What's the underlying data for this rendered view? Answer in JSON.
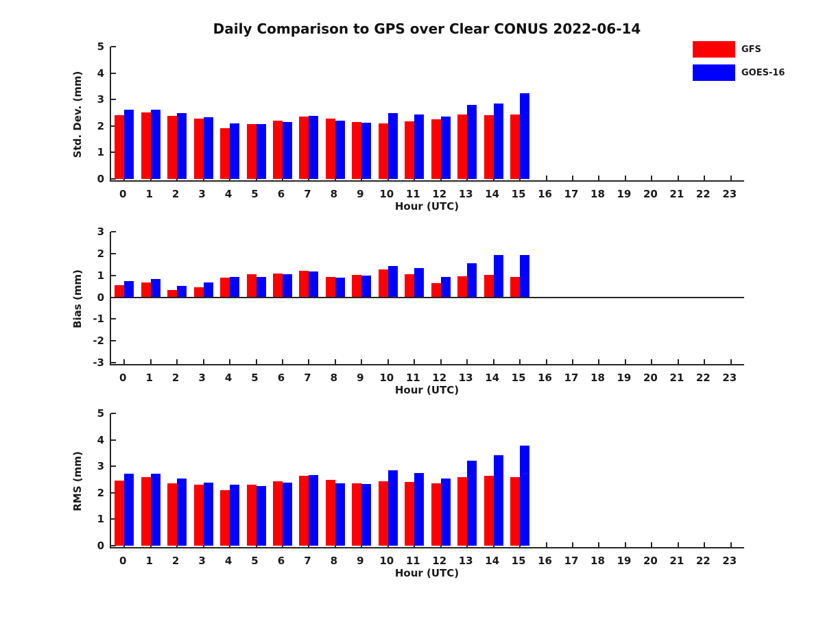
{
  "title": "Daily Comparison to GPS over Clear CONUS 2022-06-14",
  "legend": {
    "position": "outside-top-right",
    "items": [
      {
        "label": "GFS",
        "color": "#ff0000"
      },
      {
        "label": "GOES-16",
        "color": "#0000ff"
      }
    ]
  },
  "axis_color": "#262626",
  "chart_data": [
    {
      "type": "bar",
      "title": "",
      "ylabel": "Std. Dev. (mm)",
      "xlabel": "Hour (UTC)",
      "ylim": [
        0,
        5
      ],
      "yticks": [
        0,
        1,
        2,
        3,
        4,
        5
      ],
      "grid": false,
      "categories": [
        "0",
        "1",
        "2",
        "3",
        "4",
        "5",
        "6",
        "7",
        "8",
        "9",
        "10",
        "11",
        "12",
        "13",
        "14",
        "15",
        "16",
        "17",
        "18",
        "19",
        "20",
        "21",
        "22",
        "23"
      ],
      "series": [
        {
          "name": "GFS",
          "color": "#ff0000",
          "values": [
            2.42,
            2.52,
            2.38,
            2.27,
            1.91,
            2.06,
            2.19,
            2.37,
            2.29,
            2.16,
            2.09,
            2.17,
            2.26,
            2.43,
            2.41,
            2.43,
            null,
            null,
            null,
            null,
            null,
            null,
            null,
            null
          ]
        },
        {
          "name": "GOES-16",
          "color": "#0000ff",
          "values": [
            2.62,
            2.62,
            2.49,
            2.32,
            2.11,
            2.06,
            2.15,
            2.39,
            2.19,
            2.12,
            2.49,
            2.44,
            2.37,
            2.81,
            2.86,
            3.24,
            null,
            null,
            null,
            null,
            null,
            null,
            null,
            null
          ]
        }
      ]
    },
    {
      "type": "bar",
      "title": "",
      "ylabel": "Bias (mm)",
      "xlabel": "Hour (UTC)",
      "ylim": [
        -3,
        3
      ],
      "yticks": [
        -3,
        -2,
        -1,
        0,
        1,
        2,
        3
      ],
      "zero_line": true,
      "grid": false,
      "categories": [
        "0",
        "1",
        "2",
        "3",
        "4",
        "5",
        "6",
        "7",
        "8",
        "9",
        "10",
        "11",
        "12",
        "13",
        "14",
        "15",
        "16",
        "17",
        "18",
        "19",
        "20",
        "21",
        "22",
        "23"
      ],
      "series": [
        {
          "name": "GFS",
          "color": "#ff0000",
          "values": [
            0.56,
            0.69,
            0.32,
            0.46,
            0.89,
            1.06,
            1.09,
            1.21,
            0.94,
            1.02,
            1.28,
            1.05,
            0.63,
            0.95,
            1.03,
            0.92,
            null,
            null,
            null,
            null,
            null,
            null,
            null,
            null
          ]
        },
        {
          "name": "GOES-16",
          "color": "#0000ff",
          "values": [
            0.75,
            0.82,
            0.53,
            0.68,
            0.93,
            0.93,
            1.05,
            1.17,
            0.9,
            0.99,
            1.43,
            1.35,
            0.92,
            1.57,
            1.93,
            1.93,
            null,
            null,
            null,
            null,
            null,
            null,
            null,
            null
          ]
        }
      ]
    },
    {
      "type": "bar",
      "title": "",
      "ylabel": "RMS (mm)",
      "xlabel": "Hour (UTC)",
      "ylim": [
        0,
        5
      ],
      "yticks": [
        0,
        1,
        2,
        3,
        4,
        5
      ],
      "grid": false,
      "categories": [
        "0",
        "1",
        "2",
        "3",
        "4",
        "5",
        "6",
        "7",
        "8",
        "9",
        "10",
        "11",
        "12",
        "13",
        "14",
        "15",
        "16",
        "17",
        "18",
        "19",
        "20",
        "21",
        "22",
        "23"
      ],
      "series": [
        {
          "name": "GFS",
          "color": "#ff0000",
          "values": [
            2.45,
            2.58,
            2.37,
            2.3,
            2.1,
            2.3,
            2.43,
            2.65,
            2.49,
            2.37,
            2.43,
            2.41,
            2.35,
            2.6,
            2.63,
            2.58,
            null,
            null,
            null,
            null,
            null,
            null,
            null,
            null
          ]
        },
        {
          "name": "GOES-16",
          "color": "#0000ff",
          "values": [
            2.71,
            2.72,
            2.53,
            2.39,
            2.31,
            2.26,
            2.39,
            2.68,
            2.36,
            2.34,
            2.84,
            2.75,
            2.54,
            3.2,
            3.43,
            3.77,
            null,
            null,
            null,
            null,
            null,
            null,
            null,
            null
          ]
        }
      ]
    }
  ]
}
